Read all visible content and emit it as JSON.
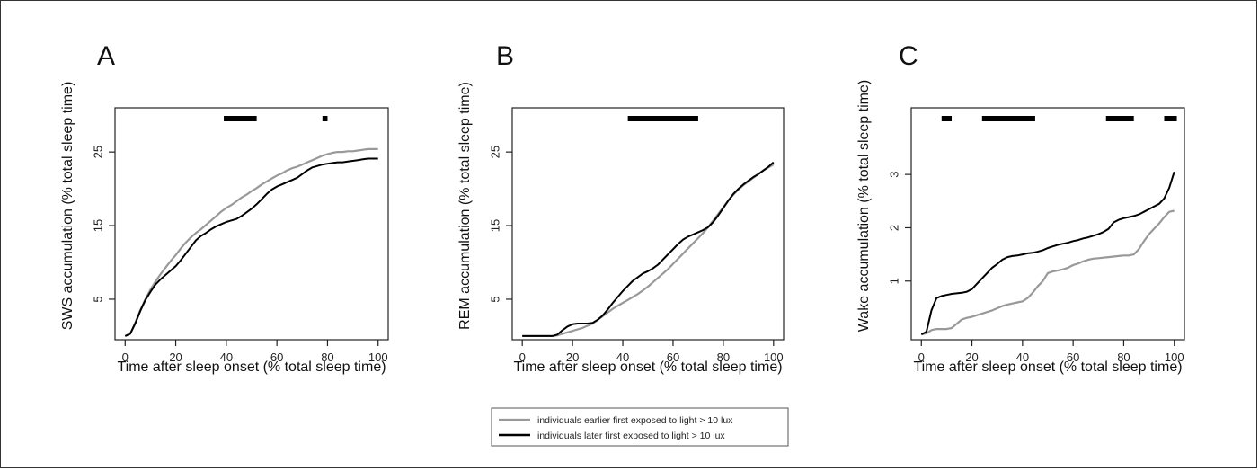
{
  "chart_data": [
    {
      "type": "line",
      "panel_label": "A",
      "xlabel": "Time after sleep onset (% total sleep time)",
      "ylabel": "SWS accumulation (% total sleep time)",
      "xlim": [
        -4,
        104
      ],
      "ylim": [
        -0.5,
        31
      ],
      "xticks": [
        "0",
        "20",
        "40",
        "60",
        "80",
        "100"
      ],
      "yticks": [
        "5",
        "15",
        "25"
      ],
      "series": [
        {
          "name": "individuals earlier first exposed to light > 10 lux",
          "color": "#999999",
          "x": [
            0,
            2,
            4,
            6,
            8,
            10,
            12,
            14,
            16,
            18,
            20,
            22,
            24,
            26,
            28,
            30,
            32,
            34,
            36,
            38,
            40,
            42,
            44,
            46,
            48,
            50,
            52,
            54,
            56,
            58,
            60,
            62,
            64,
            66,
            68,
            70,
            72,
            74,
            76,
            78,
            80,
            82,
            84,
            86,
            88,
            90,
            92,
            94,
            96,
            98,
            100
          ],
          "y": [
            0,
            0.3,
            1.8,
            3.5,
            5.0,
            6.3,
            7.4,
            8.4,
            9.3,
            10.2,
            11.0,
            11.9,
            12.7,
            13.4,
            14.0,
            14.5,
            15.1,
            15.7,
            16.3,
            16.9,
            17.4,
            17.8,
            18.3,
            18.8,
            19.2,
            19.7,
            20.1,
            20.6,
            21.0,
            21.4,
            21.8,
            22.1,
            22.5,
            22.8,
            23.0,
            23.3,
            23.6,
            23.9,
            24.2,
            24.5,
            24.7,
            24.9,
            25.0,
            25.0,
            25.1,
            25.1,
            25.2,
            25.3,
            25.4,
            25.4,
            25.4
          ]
        },
        {
          "name": "individuals later first exposed to light > 10 lux",
          "color": "#000000",
          "x": [
            0,
            2,
            4,
            6,
            8,
            10,
            12,
            14,
            16,
            18,
            20,
            22,
            24,
            26,
            28,
            30,
            32,
            34,
            36,
            38,
            40,
            42,
            44,
            46,
            48,
            50,
            52,
            54,
            56,
            58,
            60,
            62,
            64,
            66,
            68,
            70,
            72,
            74,
            76,
            78,
            80,
            82,
            84,
            86,
            88,
            90,
            92,
            94,
            96,
            98,
            100
          ],
          "y": [
            0,
            0.3,
            1.7,
            3.4,
            4.9,
            6.0,
            7.0,
            7.7,
            8.3,
            8.9,
            9.5,
            10.3,
            11.2,
            12.1,
            13.0,
            13.6,
            14.0,
            14.5,
            14.9,
            15.2,
            15.5,
            15.7,
            15.9,
            16.3,
            16.8,
            17.3,
            17.9,
            18.6,
            19.3,
            19.9,
            20.3,
            20.6,
            20.9,
            21.2,
            21.5,
            22.0,
            22.5,
            22.9,
            23.1,
            23.3,
            23.4,
            23.5,
            23.6,
            23.6,
            23.7,
            23.8,
            23.9,
            24.0,
            24.1,
            24.1,
            24.1
          ]
        }
      ],
      "significance_bars": [
        [
          39,
          52
        ],
        [
          78,
          80
        ]
      ]
    },
    {
      "type": "line",
      "panel_label": "B",
      "xlabel": "Time after sleep onset (% total sleep time)",
      "ylabel": "REM accumulation (% total sleep time)",
      "xlim": [
        -4,
        104
      ],
      "ylim": [
        -0.5,
        31
      ],
      "xticks": [
        "0",
        "20",
        "40",
        "60",
        "80",
        "100"
      ],
      "yticks": [
        "5",
        "15",
        "25"
      ],
      "series": [
        {
          "name": "individuals earlier first exposed to light > 10 lux",
          "color": "#999999",
          "x": [
            0,
            2,
            4,
            6,
            8,
            10,
            12,
            14,
            16,
            18,
            20,
            22,
            24,
            26,
            28,
            30,
            32,
            34,
            36,
            38,
            40,
            42,
            44,
            46,
            48,
            50,
            52,
            54,
            56,
            58,
            60,
            62,
            64,
            66,
            68,
            70,
            72,
            74,
            76,
            78,
            80,
            82,
            84,
            86,
            88,
            90,
            92,
            94,
            96,
            98,
            100
          ],
          "y": [
            0,
            0,
            0,
            0,
            0,
            0,
            0,
            0.1,
            0.3,
            0.5,
            0.7,
            0.9,
            1.1,
            1.4,
            1.7,
            2.2,
            2.7,
            3.2,
            3.7,
            4.1,
            4.5,
            4.9,
            5.3,
            5.7,
            6.2,
            6.7,
            7.3,
            7.9,
            8.5,
            9.1,
            9.8,
            10.5,
            11.2,
            11.9,
            12.6,
            13.3,
            14.0,
            14.8,
            15.7,
            16.6,
            17.5,
            18.4,
            19.2,
            19.9,
            20.5,
            21.0,
            21.5,
            22.0,
            22.5,
            22.9,
            23.3
          ]
        },
        {
          "name": "individuals later first exposed to light > 10 lux",
          "color": "#000000",
          "x": [
            0,
            2,
            4,
            6,
            8,
            10,
            12,
            14,
            16,
            18,
            20,
            22,
            24,
            26,
            28,
            30,
            32,
            34,
            36,
            38,
            40,
            42,
            44,
            46,
            48,
            50,
            52,
            54,
            56,
            58,
            60,
            62,
            64,
            66,
            68,
            70,
            72,
            74,
            76,
            78,
            80,
            82,
            84,
            86,
            88,
            90,
            92,
            94,
            96,
            98,
            100
          ],
          "y": [
            0,
            0,
            0,
            0,
            0,
            0,
            0,
            0.2,
            0.8,
            1.3,
            1.6,
            1.7,
            1.7,
            1.7,
            1.8,
            2.2,
            2.8,
            3.6,
            4.5,
            5.3,
            6.1,
            6.8,
            7.5,
            8.0,
            8.5,
            8.8,
            9.2,
            9.7,
            10.4,
            11.1,
            11.8,
            12.5,
            13.1,
            13.5,
            13.8,
            14.1,
            14.4,
            14.8,
            15.5,
            16.4,
            17.4,
            18.4,
            19.3,
            20.0,
            20.6,
            21.1,
            21.6,
            22.0,
            22.5,
            23.0,
            23.6
          ]
        }
      ],
      "significance_bars": [
        [
          42,
          70
        ]
      ]
    },
    {
      "type": "line",
      "panel_label": "C",
      "xlabel": "Time after sleep onset (% total sleep time)",
      "ylabel": "Wake accumulation (% total sleep time)",
      "xlim": [
        -4,
        104
      ],
      "ylim": [
        -0.1,
        4.25
      ],
      "xticks": [
        "0",
        "20",
        "40",
        "60",
        "80",
        "100"
      ],
      "yticks": [
        "1",
        "2",
        "3"
      ],
      "series": [
        {
          "name": "individuals earlier first exposed to light > 10 lux",
          "color": "#999999",
          "x": [
            0,
            2,
            4,
            6,
            8,
            10,
            12,
            14,
            16,
            18,
            20,
            22,
            24,
            26,
            28,
            30,
            32,
            34,
            36,
            38,
            40,
            42,
            44,
            46,
            48,
            50,
            52,
            54,
            56,
            58,
            60,
            62,
            64,
            66,
            68,
            70,
            72,
            74,
            76,
            78,
            80,
            82,
            84,
            86,
            88,
            90,
            92,
            94,
            96,
            98,
            100
          ],
          "y": [
            0,
            0.02,
            0.08,
            0.1,
            0.1,
            0.1,
            0.12,
            0.2,
            0.28,
            0.31,
            0.33,
            0.36,
            0.39,
            0.42,
            0.45,
            0.49,
            0.53,
            0.56,
            0.58,
            0.6,
            0.62,
            0.68,
            0.78,
            0.9,
            1.0,
            1.15,
            1.18,
            1.2,
            1.22,
            1.25,
            1.3,
            1.33,
            1.37,
            1.4,
            1.42,
            1.43,
            1.44,
            1.45,
            1.46,
            1.47,
            1.48,
            1.48,
            1.5,
            1.6,
            1.75,
            1.88,
            1.98,
            2.08,
            2.2,
            2.3,
            2.32
          ]
        },
        {
          "name": "individuals later first exposed to light > 10 lux",
          "color": "#000000",
          "x": [
            0,
            2,
            4,
            6,
            8,
            10,
            12,
            14,
            16,
            18,
            20,
            22,
            24,
            26,
            28,
            30,
            32,
            34,
            36,
            38,
            40,
            42,
            44,
            46,
            48,
            50,
            52,
            54,
            56,
            58,
            60,
            62,
            64,
            66,
            68,
            70,
            72,
            74,
            76,
            78,
            80,
            82,
            84,
            86,
            88,
            90,
            92,
            94,
            96,
            98,
            100
          ],
          "y": [
            0,
            0.05,
            0.45,
            0.68,
            0.72,
            0.74,
            0.76,
            0.77,
            0.78,
            0.8,
            0.85,
            0.95,
            1.05,
            1.15,
            1.25,
            1.32,
            1.4,
            1.45,
            1.47,
            1.48,
            1.5,
            1.52,
            1.53,
            1.55,
            1.58,
            1.62,
            1.65,
            1.68,
            1.7,
            1.72,
            1.75,
            1.77,
            1.8,
            1.82,
            1.85,
            1.88,
            1.92,
            1.98,
            2.1,
            2.15,
            2.18,
            2.2,
            2.22,
            2.25,
            2.3,
            2.35,
            2.4,
            2.45,
            2.55,
            2.75,
            3.05
          ]
        }
      ],
      "significance_bars": [
        [
          8,
          12
        ],
        [
          24,
          45
        ],
        [
          73,
          84
        ],
        [
          96,
          101
        ]
      ]
    }
  ],
  "legend": {
    "entries": [
      {
        "label": "individuals earlier first exposed to light > 10 lux",
        "color": "#999999"
      },
      {
        "label": "individuals later first exposed to light > 10 lux",
        "color": "#000000"
      }
    ]
  }
}
